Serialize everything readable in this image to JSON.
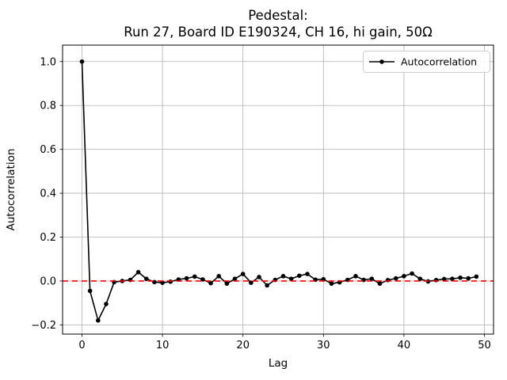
{
  "title": {
    "line1": "Pedestal:",
    "line2": "Run 27, Board ID E190324, CH 16, hi gain, 50Ω"
  },
  "chart_data": {
    "type": "line",
    "title": "Pedestal:\nRun 27, Board ID E190324, CH 16, hi gain, 50Ω",
    "title_lines": [
      "Pedestal:",
      "Run 27, Board ID E190324, CH 16, hi gain, 50Ω"
    ],
    "xlabel": "Lag",
    "ylabel": "Autocorrelation",
    "legend": {
      "entries": [
        "Autocorrelation"
      ],
      "position": "upper right"
    },
    "x": [
      0,
      1,
      2,
      3,
      4,
      5,
      6,
      7,
      8,
      9,
      10,
      11,
      12,
      13,
      14,
      15,
      16,
      17,
      18,
      19,
      20,
      21,
      22,
      23,
      24,
      25,
      26,
      27,
      28,
      29,
      30,
      31,
      32,
      33,
      34,
      35,
      36,
      37,
      38,
      39,
      40,
      41,
      42,
      43,
      44,
      45,
      46,
      47,
      48,
      49
    ],
    "series": [
      {
        "name": "Autocorrelation",
        "color": "#000000",
        "marker": "circle",
        "values": [
          1.0,
          -0.045,
          -0.18,
          -0.105,
          -0.005,
          0.0,
          0.005,
          0.04,
          0.01,
          -0.005,
          -0.008,
          -0.003,
          0.007,
          0.012,
          0.02,
          0.007,
          -0.01,
          0.022,
          -0.012,
          0.01,
          0.032,
          -0.008,
          0.018,
          -0.02,
          0.005,
          0.022,
          0.01,
          0.024,
          0.032,
          0.006,
          0.008,
          -0.012,
          -0.006,
          0.005,
          0.022,
          0.005,
          0.01,
          -0.012,
          0.004,
          0.012,
          0.022,
          0.034,
          0.01,
          -0.002,
          0.004,
          0.009,
          0.01,
          0.015,
          0.012,
          0.02
        ]
      }
    ],
    "zero_line": {
      "y": 0.0,
      "color": "#ff0000",
      "style": "dashed"
    },
    "xlim": [
      -2.41,
      51.13
    ],
    "ylim": [
      -0.242,
      1.075
    ],
    "xticks": [
      0,
      10,
      20,
      30,
      40,
      50
    ],
    "yticks": [
      -0.2,
      0.0,
      0.2,
      0.4,
      0.6,
      0.8,
      1.0
    ],
    "grid": true,
    "grid_color": "#b0b0b0",
    "axes_color": "#000000",
    "background": "#ffffff",
    "legend_border_color": "#cccccc"
  }
}
